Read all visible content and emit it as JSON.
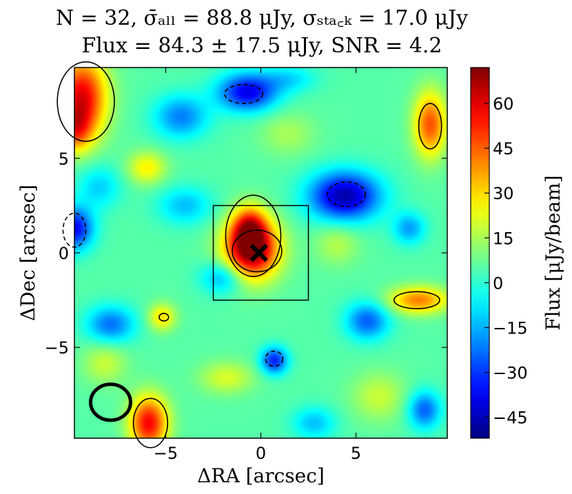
{
  "title_line1": "N = 32, σ̄ₐₗₗ = 88.8 μJy, σₛₜₐ꜀ₖ = 17.0 μJy",
  "title_line2": "Flux = 84.3 ± 17.5 μJy, SNR = 4.2",
  "chart_data": {
    "type": "heatmap",
    "title": "N = 32, σ̄ₐₗₗ = 88.8 μJy, σₛₜₐ꜀ₖ = 17.0 μJy; Flux = 84.3 ± 17.5 μJy, SNR = 4.2",
    "xlabel": "ΔRA [arcsec]",
    "ylabel": "ΔDec [arcsec]",
    "xlim": [
      -9.8,
      9.8
    ],
    "ylim": [
      -9.8,
      9.8
    ],
    "xticks": [
      "−5",
      "0",
      "5"
    ],
    "xtick_values": [
      -5,
      0,
      5
    ],
    "yticks": [
      "5",
      "0",
      "−5"
    ],
    "ytick_values": [
      5,
      0,
      -5
    ],
    "colorbar": {
      "label": "Flux [μJy/beam]",
      "range": [
        -52,
        72
      ],
      "ticks": [
        "60",
        "45",
        "30",
        "15",
        "0",
        "−15",
        "−30",
        "−45"
      ],
      "tick_values": [
        60,
        45,
        30,
        15,
        0,
        -15,
        -30,
        -45
      ],
      "colormap": "jet"
    },
    "sources": [
      {
        "x": -0.5,
        "y": 0.2,
        "peak": 68,
        "sx": 1.0,
        "sy": 1.1
      },
      {
        "x": -0.6,
        "y": 1.3,
        "peak": 38,
        "sx": 0.6,
        "sy": 0.8
      },
      {
        "x": -9.4,
        "y": 8.2,
        "peak": 55,
        "sx": 0.9,
        "sy": 1.5
      },
      {
        "x": -9.8,
        "y": 6.5,
        "peak": 28,
        "sx": 0.6,
        "sy": 0.8
      },
      {
        "x": 8.9,
        "y": 6.8,
        "peak": 42,
        "sx": 0.6,
        "sy": 1.2
      },
      {
        "x": 8.3,
        "y": -2.5,
        "peak": 36,
        "sx": 1.1,
        "sy": 0.5
      },
      {
        "x": -5.9,
        "y": -9.0,
        "peak": 52,
        "sx": 0.7,
        "sy": 1.0
      },
      {
        "x": -5.2,
        "y": -3.4,
        "peak": 24,
        "sx": 0.5,
        "sy": 0.5
      },
      {
        "x": -6.0,
        "y": 4.5,
        "peak": 22,
        "sx": 0.7,
        "sy": 0.6
      },
      {
        "x": 1.4,
        "y": 6.3,
        "peak": 10,
        "sx": 1.0,
        "sy": 0.8
      },
      {
        "x": -8.2,
        "y": -5.8,
        "peak": 14,
        "sx": 0.8,
        "sy": 0.8
      },
      {
        "x": -1.8,
        "y": -6.6,
        "peak": 16,
        "sx": 1.0,
        "sy": 0.6
      },
      {
        "x": 6.2,
        "y": -7.6,
        "peak": 14,
        "sx": 1.0,
        "sy": 0.9
      },
      {
        "x": 4.0,
        "y": 0.5,
        "peak": 12,
        "sx": 0.8,
        "sy": 0.8
      },
      {
        "x": -0.7,
        "y": 8.5,
        "peak": -44,
        "sx": 1.1,
        "sy": 0.7
      },
      {
        "x": 4.4,
        "y": 3.0,
        "peak": -52,
        "sx": 1.3,
        "sy": 0.9
      },
      {
        "x": -9.8,
        "y": 1.3,
        "peak": -42,
        "sx": 0.7,
        "sy": 0.8
      },
      {
        "x": 0.7,
        "y": -5.7,
        "peak": -38,
        "sx": 0.5,
        "sy": 0.5
      },
      {
        "x": -7.9,
        "y": -3.8,
        "peak": -28,
        "sx": 0.9,
        "sy": 0.7
      },
      {
        "x": -4.2,
        "y": 7.2,
        "peak": -26,
        "sx": 1.0,
        "sy": 0.8
      },
      {
        "x": 5.6,
        "y": -3.6,
        "peak": -30,
        "sx": 0.8,
        "sy": 0.7
      },
      {
        "x": 8.6,
        "y": -8.3,
        "peak": -30,
        "sx": 0.6,
        "sy": 0.7
      },
      {
        "x": -2.0,
        "y": -1.3,
        "peak": -22,
        "sx": 0.8,
        "sy": 0.6
      },
      {
        "x": 7.8,
        "y": 1.3,
        "peak": -22,
        "sx": 0.6,
        "sy": 0.6
      },
      {
        "x": -4.0,
        "y": 2.5,
        "peak": -18,
        "sx": 1.0,
        "sy": 0.7
      },
      {
        "x": 2.8,
        "y": -9.0,
        "peak": -18,
        "sx": 0.8,
        "sy": 0.6
      },
      {
        "x": -8.5,
        "y": 3.5,
        "peak": -16,
        "sx": 0.8,
        "sy": 0.8
      },
      {
        "x": 1.5,
        "y": 9.2,
        "peak": -14,
        "sx": 1.0,
        "sy": 0.5
      }
    ],
    "positive_contours": [
      {
        "cx": -0.2,
        "cy": 0.1,
        "rx": 1.3,
        "ry": 1.1
      },
      {
        "cx": -0.4,
        "cy": 0.9,
        "rx": 1.45,
        "ry": 2.15
      },
      {
        "cx": -9.2,
        "cy": 8.0,
        "rx": 1.5,
        "ry": 2.1
      },
      {
        "cx": 8.9,
        "cy": 6.7,
        "rx": 0.6,
        "ry": 1.2
      },
      {
        "cx": 8.2,
        "cy": -2.5,
        "rx": 1.2,
        "ry": 0.45
      },
      {
        "cx": -5.8,
        "cy": -9.0,
        "rx": 0.9,
        "ry": 1.3
      },
      {
        "cx": -5.1,
        "cy": -3.4,
        "rx": 0.25,
        "ry": 0.2
      }
    ],
    "negative_contours": [
      {
        "cx": -0.9,
        "cy": 8.4,
        "rx": 1.0,
        "ry": 0.5
      },
      {
        "cx": 4.5,
        "cy": 3.1,
        "rx": 1.0,
        "ry": 0.65
      },
      {
        "cx": -9.8,
        "cy": 1.2,
        "rx": 0.6,
        "ry": 0.9
      },
      {
        "cx": 0.7,
        "cy": -5.6,
        "rx": 0.45,
        "ry": 0.4
      }
    ],
    "stack_box": {
      "x0": -2.5,
      "x1": 2.5,
      "y0": -2.5,
      "y1": 2.5
    },
    "centroid_marker": {
      "x": -0.1,
      "y": 0.0
    },
    "beam": {
      "x": -7.9,
      "y": -7.9,
      "rx": 1.05,
      "ry": 0.95
    }
  }
}
